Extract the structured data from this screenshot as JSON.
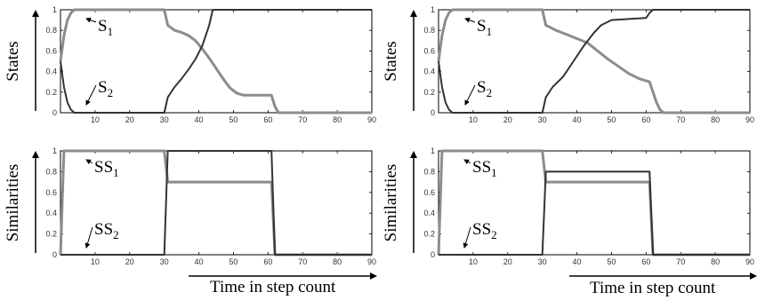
{
  "chart_data": [
    {
      "type": "line",
      "ylabel": "States",
      "xlim": [
        0,
        90
      ],
      "ylim": [
        0,
        1
      ],
      "xticks": [
        10,
        20,
        30,
        40,
        50,
        60,
        70,
        80,
        90
      ],
      "yticks": [
        "0",
        "0.2",
        "0.4",
        "0.6",
        "0.8",
        "1"
      ],
      "annotations": [
        {
          "text": "S1",
          "base": "S",
          "sub": "1"
        },
        {
          "text": "S2",
          "base": "S",
          "sub": "2"
        }
      ],
      "series": [
        {
          "name": "S1",
          "color": "#8c8c8c",
          "x": [
            0,
            1,
            2,
            3,
            4,
            5,
            30,
            31,
            33,
            35,
            37,
            39,
            41,
            43,
            45,
            47,
            49,
            51,
            53,
            61,
            62,
            63,
            90
          ],
          "y": [
            0.5,
            0.75,
            0.9,
            0.97,
            1,
            1,
            1,
            0.85,
            0.8,
            0.78,
            0.75,
            0.7,
            0.62,
            0.53,
            0.43,
            0.33,
            0.24,
            0.19,
            0.17,
            0.17,
            0.06,
            0,
            0
          ]
        },
        {
          "name": "S2",
          "color": "#333333",
          "x": [
            0,
            1,
            2,
            3,
            4,
            5,
            30,
            31,
            33,
            35,
            37,
            39,
            41,
            43,
            44,
            90
          ],
          "y": [
            0.5,
            0.25,
            0.1,
            0.03,
            0,
            0,
            0,
            0.15,
            0.25,
            0.33,
            0.42,
            0.52,
            0.65,
            0.85,
            1,
            1
          ]
        }
      ]
    },
    {
      "type": "line",
      "ylabel": "States",
      "xlim": [
        0,
        90
      ],
      "ylim": [
        0,
        1
      ],
      "xticks": [
        10,
        20,
        30,
        40,
        50,
        60,
        70,
        80,
        90
      ],
      "yticks": [
        "0",
        "0.2",
        "0.4",
        "0.6",
        "0.8",
        "1"
      ],
      "annotations": [
        {
          "text": "S1",
          "base": "S",
          "sub": "1"
        },
        {
          "text": "S2",
          "base": "S",
          "sub": "2"
        }
      ],
      "series": [
        {
          "name": "S1",
          "color": "#8c8c8c",
          "x": [
            0,
            1,
            2,
            3,
            4,
            5,
            30,
            31,
            34,
            37,
            40,
            43,
            46,
            49,
            52,
            55,
            58,
            61,
            62,
            63,
            64,
            65,
            90
          ],
          "y": [
            0.5,
            0.75,
            0.9,
            0.97,
            1,
            1,
            1,
            0.85,
            0.8,
            0.76,
            0.72,
            0.68,
            0.6,
            0.52,
            0.45,
            0.38,
            0.33,
            0.3,
            0.2,
            0.1,
            0.03,
            0,
            0
          ]
        },
        {
          "name": "S2",
          "color": "#333333",
          "x": [
            0,
            1,
            2,
            3,
            4,
            5,
            30,
            31,
            33,
            36,
            39,
            42,
            45,
            47,
            50,
            55,
            60,
            61,
            62,
            90
          ],
          "y": [
            0.5,
            0.25,
            0.1,
            0.03,
            0,
            0,
            0,
            0.15,
            0.25,
            0.35,
            0.5,
            0.65,
            0.78,
            0.85,
            0.9,
            0.91,
            0.92,
            0.97,
            1,
            1
          ]
        }
      ]
    },
    {
      "type": "line",
      "ylabel": "Similarities",
      "xlabel": "Time in step count",
      "xlim": [
        0,
        90
      ],
      "ylim": [
        0,
        1
      ],
      "xticks": [
        10,
        20,
        30,
        40,
        50,
        60,
        70,
        80,
        90
      ],
      "yticks": [
        "0",
        "0.2",
        "0.4",
        "0.6",
        "0.8",
        "1"
      ],
      "annotations": [
        {
          "text": "SS1",
          "base": "SS",
          "sub": "1"
        },
        {
          "text": "SS2",
          "base": "SS",
          "sub": "2"
        }
      ],
      "series": [
        {
          "name": "SS1",
          "color": "#8c8c8c",
          "x": [
            0,
            1,
            30,
            31,
            61,
            62,
            90
          ],
          "y": [
            0,
            1,
            1,
            0.7,
            0.7,
            0,
            0
          ]
        },
        {
          "name": "SS2",
          "color": "#333333",
          "x": [
            0,
            30,
            31,
            61,
            62,
            90
          ],
          "y": [
            0,
            0,
            1,
            1,
            0,
            0
          ]
        }
      ]
    },
    {
      "type": "line",
      "ylabel": "Similarities",
      "xlabel": "Time in step count",
      "xlim": [
        0,
        90
      ],
      "ylim": [
        0,
        1
      ],
      "xticks": [
        10,
        20,
        30,
        40,
        50,
        60,
        70,
        80,
        90
      ],
      "yticks": [
        "0",
        "0.2",
        "0.4",
        "0.6",
        "0.8",
        "1"
      ],
      "annotations": [
        {
          "text": "SS1",
          "base": "SS",
          "sub": "1"
        },
        {
          "text": "SS2",
          "base": "SS",
          "sub": "2"
        }
      ],
      "series": [
        {
          "name": "SS1",
          "color": "#8c8c8c",
          "x": [
            0,
            1,
            30,
            31,
            61,
            62,
            90
          ],
          "y": [
            0,
            1,
            1,
            0.7,
            0.7,
            0,
            0
          ]
        },
        {
          "name": "SS2",
          "color": "#333333",
          "x": [
            0,
            30,
            31,
            61,
            62,
            90
          ],
          "y": [
            0,
            0,
            0.8,
            0.8,
            0,
            0
          ]
        }
      ]
    }
  ]
}
